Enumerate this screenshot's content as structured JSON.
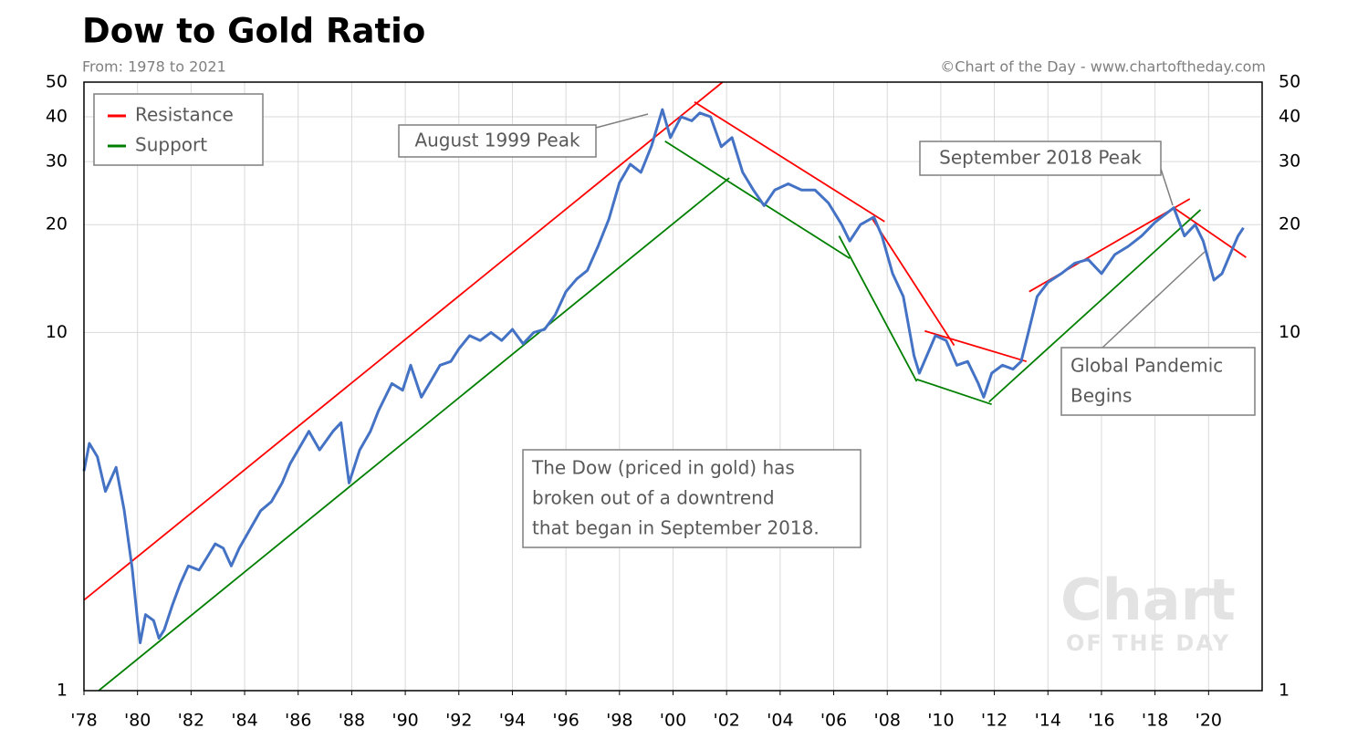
{
  "chart_data": {
    "type": "line",
    "title": "Dow to Gold Ratio",
    "subtitle": "From: 1978 to 2021",
    "source": "©Chart of the Day - www.chartoftheday.com",
    "watermark": [
      "Chart",
      "OF THE DAY"
    ],
    "log_scale": true,
    "grid": true,
    "legend_position": "top-left",
    "xlim": [
      1978,
      2022
    ],
    "xticks": [
      {
        "value": 1978,
        "label": "'78"
      },
      {
        "value": 1980,
        "label": "'80"
      },
      {
        "value": 1982,
        "label": "'82"
      },
      {
        "value": 1984,
        "label": "'84"
      },
      {
        "value": 1986,
        "label": "'86"
      },
      {
        "value": 1988,
        "label": "'88"
      },
      {
        "value": 1990,
        "label": "'90"
      },
      {
        "value": 1992,
        "label": "'92"
      },
      {
        "value": 1994,
        "label": "'94"
      },
      {
        "value": 1996,
        "label": "'96"
      },
      {
        "value": 1998,
        "label": "'98"
      },
      {
        "value": 2000,
        "label": "'00"
      },
      {
        "value": 2002,
        "label": "'02"
      },
      {
        "value": 2004,
        "label": "'04"
      },
      {
        "value": 2006,
        "label": "'06"
      },
      {
        "value": 2008,
        "label": "'08"
      },
      {
        "value": 2010,
        "label": "'10"
      },
      {
        "value": 2012,
        "label": "'12"
      },
      {
        "value": 2014,
        "label": "'14"
      },
      {
        "value": 2016,
        "label": "'16"
      },
      {
        "value": 2018,
        "label": "'18"
      },
      {
        "value": 2020,
        "label": "'20"
      }
    ],
    "ylim": [
      1,
      50
    ],
    "yticks": [
      1,
      10,
      20,
      30,
      40,
      50
    ],
    "series": [
      {
        "color": "#4472c4",
        "x": [
          1978.0,
          1978.2,
          1978.5,
          1978.8,
          1979.2,
          1979.5,
          1979.8,
          1980.0,
          1980.1,
          1980.3,
          1980.6,
          1980.8,
          1981.0,
          1981.3,
          1981.6,
          1981.9,
          1982.3,
          1982.6,
          1982.9,
          1983.2,
          1983.5,
          1983.8,
          1984.2,
          1984.6,
          1985.0,
          1985.4,
          1985.7,
          1986.0,
          1986.4,
          1986.8,
          1987.3,
          1987.6,
          1987.9,
          1988.3,
          1988.7,
          1989.0,
          1989.5,
          1989.9,
          1990.2,
          1990.6,
          1990.9,
          1991.3,
          1991.7,
          1992.0,
          1992.4,
          1992.8,
          1993.2,
          1993.6,
          1994.0,
          1994.4,
          1994.8,
          1995.2,
          1995.6,
          1996.0,
          1996.4,
          1996.8,
          1997.2,
          1997.6,
          1998.0,
          1998.4,
          1998.8,
          1999.2,
          1999.6,
          1999.9,
          2000.3,
          2000.7,
          2001.0,
          2001.4,
          2001.8,
          2002.2,
          2002.6,
          2003.0,
          2003.4,
          2003.8,
          2004.3,
          2004.8,
          2005.3,
          2005.8,
          2006.3,
          2006.6,
          2007.0,
          2007.5,
          2007.8,
          2008.2,
          2008.6,
          2009.0,
          2009.2,
          2009.8,
          2010.2,
          2010.6,
          2011.0,
          2011.4,
          2011.6,
          2011.9,
          2012.3,
          2012.7,
          2013.0,
          2013.3,
          2013.6,
          2014.0,
          2014.5,
          2015.0,
          2015.5,
          2016.0,
          2016.5,
          2017.0,
          2017.5,
          2018.0,
          2018.7,
          2019.1,
          2019.5,
          2019.8,
          2020.2,
          2020.5,
          2020.8,
          2021.1,
          2021.3
        ],
        "values": [
          4.1,
          4.9,
          4.5,
          3.6,
          4.2,
          3.2,
          2.2,
          1.57,
          1.36,
          1.63,
          1.57,
          1.4,
          1.48,
          1.73,
          1.99,
          2.23,
          2.17,
          2.36,
          2.57,
          2.5,
          2.23,
          2.5,
          2.82,
          3.18,
          3.37,
          3.8,
          4.3,
          4.7,
          5.3,
          4.7,
          5.3,
          5.6,
          3.8,
          4.7,
          5.3,
          6.05,
          7.2,
          6.9,
          8.1,
          6.6,
          7.2,
          8.1,
          8.3,
          9.0,
          9.8,
          9.5,
          10.0,
          9.5,
          10.2,
          9.3,
          10.0,
          10.2,
          11.2,
          13.0,
          14.1,
          14.9,
          17.4,
          20.7,
          26.2,
          29.5,
          28,
          33.2,
          41.9,
          35,
          40,
          39,
          41,
          40,
          33,
          35,
          28,
          25,
          22.6,
          25,
          26,
          25,
          25,
          23,
          20,
          18,
          20,
          21,
          18.6,
          14.6,
          12.6,
          8.6,
          7.7,
          9.8,
          9.5,
          8.1,
          8.3,
          7.2,
          6.6,
          7.7,
          8.1,
          7.9,
          8.3,
          10.2,
          12.6,
          13.8,
          14.6,
          15.6,
          16,
          14.6,
          16.5,
          17.4,
          18.6,
          20.3,
          22.3,
          18.6,
          20,
          18,
          14,
          14.6,
          16.5,
          18.6,
          19.6
        ]
      }
    ],
    "trend_lines": [
      {
        "name": "Resistance",
        "color": "#ff0000",
        "segments": [
          {
            "x": [
              1978.0,
              2001.85
            ],
            "values": [
              1.79,
              50
            ]
          },
          {
            "x": [
              2000.8,
              2007.9
            ],
            "values": [
              44,
              20.4
            ]
          },
          {
            "x": [
              2007.4,
              2010.5
            ],
            "values": [
              21,
              9.2
            ]
          },
          {
            "x": [
              2009.4,
              2013.2
            ],
            "values": [
              10.1,
              8.3
            ]
          },
          {
            "x": [
              2013.3,
              2019.3
            ],
            "values": [
              13,
              23.6
            ]
          },
          {
            "x": [
              2018.7,
              2021.4
            ],
            "values": [
              22.3,
              16.2
            ]
          }
        ]
      },
      {
        "name": "Support",
        "color": "#008000",
        "segments": [
          {
            "x": [
              1978.55,
              2002.1
            ],
            "values": [
              1,
              27
            ]
          },
          {
            "x": [
              1999.7,
              2006.6
            ],
            "values": [
              34.2,
              16.1
            ]
          },
          {
            "x": [
              2006.2,
              2009.1
            ],
            "values": [
              18.6,
              7.3
            ]
          },
          {
            "x": [
              2009.1,
              2011.9
            ],
            "values": [
              7.4,
              6.3
            ]
          },
          {
            "x": [
              2011.8,
              2019.7
            ],
            "values": [
              6.4,
              22
            ]
          }
        ]
      }
    ],
    "annotations": [
      {
        "lines": [
          "August 1999 Peak"
        ]
      },
      {
        "lines": [
          "September 2018 Peak"
        ]
      },
      {
        "lines": [
          "Global Pandemic",
          "Begins"
        ]
      },
      {
        "lines": [
          "The Dow (priced in gold) has",
          "broken out of a downtrend",
          "that began in September 2018."
        ]
      }
    ]
  }
}
